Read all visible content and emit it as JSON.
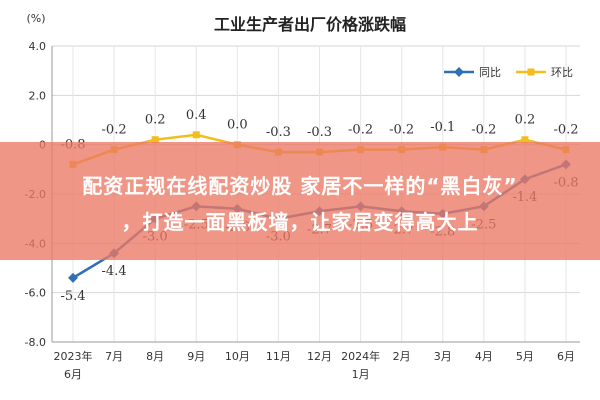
{
  "chart_data": {
    "type": "line",
    "title": "工业生产者出厂价格涨跌幅",
    "ylabel": "(%)",
    "ylim": [
      -8.0,
      4.0
    ],
    "yticks": [
      "4.0",
      "2.0",
      "0",
      "-2.0",
      "-4.0",
      "-6.0",
      "-8.0"
    ],
    "yticks_values": [
      4,
      2,
      0,
      -2,
      -4,
      -6,
      -8
    ],
    "categories": [
      {
        "line1": "2023年",
        "line2": "6月"
      },
      {
        "line1": "7月",
        "line2": ""
      },
      {
        "line1": "8月",
        "line2": ""
      },
      {
        "line1": "9月",
        "line2": ""
      },
      {
        "line1": "10月",
        "line2": ""
      },
      {
        "line1": "11月",
        "line2": ""
      },
      {
        "line1": "12月",
        "line2": ""
      },
      {
        "line1": "2024年",
        "line2": "1月"
      },
      {
        "line1": "2月",
        "line2": ""
      },
      {
        "line1": "3月",
        "line2": ""
      },
      {
        "line1": "4月",
        "line2": ""
      },
      {
        "line1": "5月",
        "line2": ""
      },
      {
        "line1": "6月",
        "line2": ""
      }
    ],
    "legend_position": "top-right",
    "grid": true,
    "series": [
      {
        "name": "同比",
        "color": "#2e6fb5",
        "values": [
          -5.4,
          -4.4,
          -3.0,
          -2.5,
          -2.6,
          -3.0,
          -2.7,
          -2.5,
          -2.7,
          -2.8,
          -2.5,
          -1.4,
          -0.8
        ],
        "labels": [
          "-5.4",
          "-4.4",
          "-3.0",
          "-2.5",
          "-2.6",
          "-3.0",
          "-2.7",
          "-2.5",
          "-2.7",
          "-2.8",
          "-2.5",
          "-1.4",
          "-0.8"
        ]
      },
      {
        "name": "环比",
        "color": "#f2bd1d",
        "values": [
          -0.8,
          -0.2,
          0.2,
          0.4,
          0.0,
          -0.3,
          -0.3,
          -0.2,
          -0.2,
          -0.1,
          -0.2,
          0.2,
          -0.2
        ],
        "labels": [
          "-0.8",
          "-0.2",
          "0.2",
          "0.4",
          "0.0",
          "-0.3",
          "-0.3",
          "-0.2",
          "-0.2",
          "-0.1",
          "-0.2",
          "0.2",
          "-0.2"
        ]
      }
    ]
  },
  "overlay": {
    "line1": "配资正规在线配资炒股 家居不一样的“黑白灰”",
    "line2": "，打造一面黑板墙，让家居变得高大上",
    "color": "#ec7864"
  }
}
